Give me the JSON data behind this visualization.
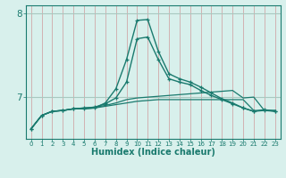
{
  "xlabel": "Humidex (Indice chaleur)",
  "x_values": [
    0,
    1,
    2,
    3,
    4,
    5,
    6,
    7,
    8,
    9,
    10,
    11,
    12,
    13,
    14,
    15,
    16,
    17,
    18,
    19,
    20,
    21,
    22,
    23
  ],
  "line_peak": [
    6.62,
    6.78,
    6.83,
    6.84,
    6.86,
    6.86,
    6.87,
    6.93,
    7.1,
    7.45,
    7.92,
    7.93,
    7.55,
    7.28,
    7.22,
    7.18,
    7.12,
    7.05,
    6.98,
    6.93,
    6.87,
    6.83,
    6.84,
    6.83
  ],
  "line_mid": [
    6.62,
    6.78,
    6.83,
    6.84,
    6.86,
    6.87,
    6.88,
    6.92,
    6.99,
    7.18,
    7.7,
    7.72,
    7.45,
    7.22,
    7.18,
    7.15,
    7.08,
    7.02,
    6.97,
    6.92,
    6.87,
    6.83,
    6.85,
    6.83
  ],
  "line_upper": [
    6.62,
    6.78,
    6.83,
    6.84,
    6.86,
    6.87,
    6.88,
    6.9,
    6.93,
    6.97,
    6.99,
    7.0,
    7.01,
    7.02,
    7.03,
    7.04,
    7.05,
    7.06,
    7.07,
    7.08,
    6.99,
    7.0,
    6.84,
    6.84
  ],
  "line_lower": [
    6.62,
    6.78,
    6.83,
    6.84,
    6.86,
    6.86,
    6.87,
    6.89,
    6.91,
    6.93,
    6.95,
    6.96,
    6.97,
    6.97,
    6.97,
    6.97,
    6.97,
    6.97,
    6.97,
    6.97,
    6.97,
    6.84,
    6.84,
    6.84
  ],
  "line_color": "#1a7a6e",
  "bg_color": "#d8f0ec",
  "grid_color_v": "#d0a8a8",
  "grid_color_h": "#a8c8c0",
  "ylim": [
    6.5,
    8.1
  ],
  "yticks": [
    7,
    8
  ],
  "xlim": [
    -0.5,
    23.5
  ]
}
